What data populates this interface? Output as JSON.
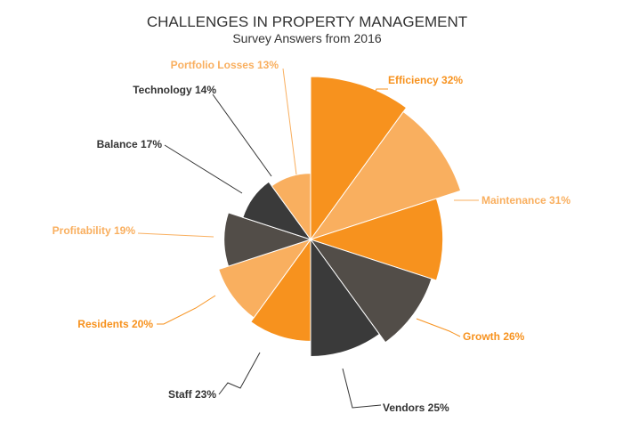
{
  "chart_data": {
    "type": "pie",
    "title": "CHALLENGES IN PROPERTY MANAGEMENT",
    "subtitle": "Survey Answers from 2016",
    "slices": [
      {
        "name": "Efficiency",
        "value": 32,
        "label": "Efficiency 32%",
        "color": "#F7921E",
        "text_color": "#F7921E"
      },
      {
        "name": "Maintenance",
        "value": 31,
        "label": "Maintenance 31%",
        "color": "#F9AF5F",
        "text_color": "#F9AF5F"
      },
      {
        "name": "Growth",
        "value": 26,
        "label": "Growth 26%",
        "color": "#F7921E",
        "text_color": "#F7921E"
      },
      {
        "name": "Vendors",
        "value": 25,
        "label": "Vendors 25%",
        "color": "#524D48",
        "text_color": "#333333"
      },
      {
        "name": "Staff",
        "value": 23,
        "label": "Staff 23%",
        "color": "#3A3A3A",
        "text_color": "#333333"
      },
      {
        "name": "Residents",
        "value": 20,
        "label": "Residents 20%",
        "color": "#F7921E",
        "text_color": "#F7921E"
      },
      {
        "name": "Profitability",
        "value": 19,
        "label": "Profitability 19%",
        "color": "#F9AF5F",
        "text_color": "#F9AF5F"
      },
      {
        "name": "Balance",
        "value": 17,
        "label": "Balance 17%",
        "color": "#524D48",
        "text_color": "#333333"
      },
      {
        "name": "Technology",
        "value": 14,
        "label": "Technology 14%",
        "color": "#3A3A3A",
        "text_color": "#333333"
      },
      {
        "name": "Portfolio Losses",
        "value": 13,
        "label": "Portfolio Losses 13%",
        "color": "#F9AF5F",
        "text_color": "#F9AF5F"
      }
    ]
  }
}
